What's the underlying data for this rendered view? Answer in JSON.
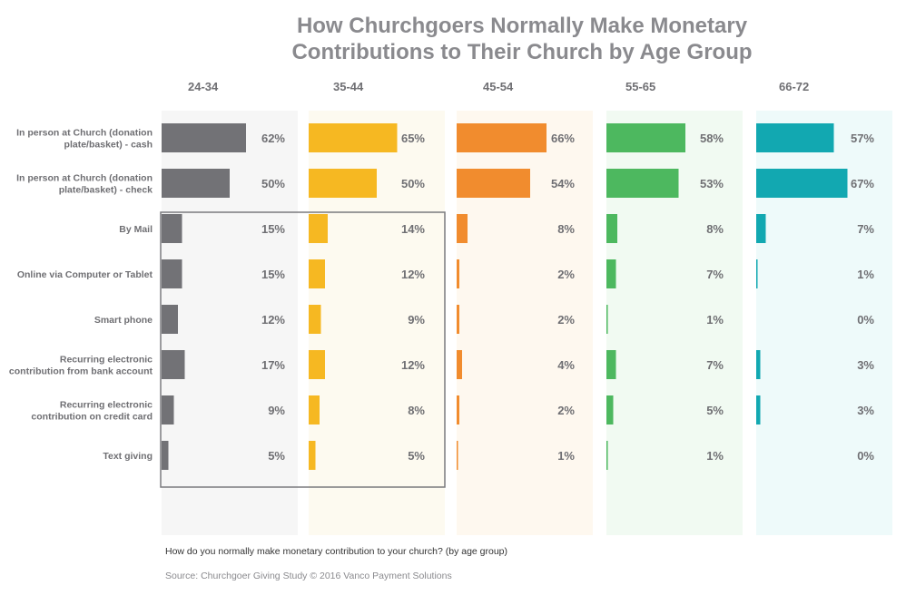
{
  "chart_data": {
    "type": "bar",
    "orientation": "horizontal",
    "layout": "small-multiples",
    "title_lines": [
      "How Churchgoers Normally Make Monetary",
      "Contributions to Their Church by Age Group"
    ],
    "categories": [
      [
        "In person at Church (donation",
        "plate/basket) - cash"
      ],
      [
        "In person at Church (donation",
        "plate/basket) - check"
      ],
      [
        "By Mail"
      ],
      [
        "Online via Computer or Tablet"
      ],
      [
        "Smart phone"
      ],
      [
        "Recurring electronic",
        "contribution from bank account"
      ],
      [
        "Recurring electronic",
        "contribution on credit card"
      ],
      [
        "Text giving"
      ]
    ],
    "series": [
      {
        "name": "24-34",
        "color": "#727276",
        "panel_color": "#f6f6f6",
        "values": [
          62,
          50,
          15,
          15,
          12,
          17,
          9,
          5
        ]
      },
      {
        "name": "35-44",
        "color": "#f6b822",
        "panel_color": "#fdfaf0",
        "values": [
          65,
          50,
          14,
          12,
          9,
          12,
          8,
          5
        ]
      },
      {
        "name": "45-54",
        "color": "#f18c2e",
        "panel_color": "#fef8ef",
        "values": [
          66,
          54,
          8,
          2,
          2,
          4,
          2,
          1
        ]
      },
      {
        "name": "55-65",
        "color": "#4db85f",
        "panel_color": "#f1faf2",
        "values": [
          58,
          53,
          8,
          7,
          1,
          7,
          5,
          1
        ]
      },
      {
        "name": "66-72",
        "color": "#12a8b1",
        "panel_color": "#eefafa",
        "values": [
          57,
          67,
          7,
          1,
          0,
          3,
          3,
          0
        ]
      }
    ],
    "value_suffix": "%",
    "xlim": [
      0,
      100
    ],
    "highlight_box": {
      "rows": [
        2,
        7
      ],
      "series": [
        0,
        1
      ]
    }
  },
  "footer": {
    "question": "How do you normally make monetary contribution to your church? (by age group)",
    "source": "Source: Churchgoer Giving Study © 2016 Vanco Payment Solutions"
  }
}
